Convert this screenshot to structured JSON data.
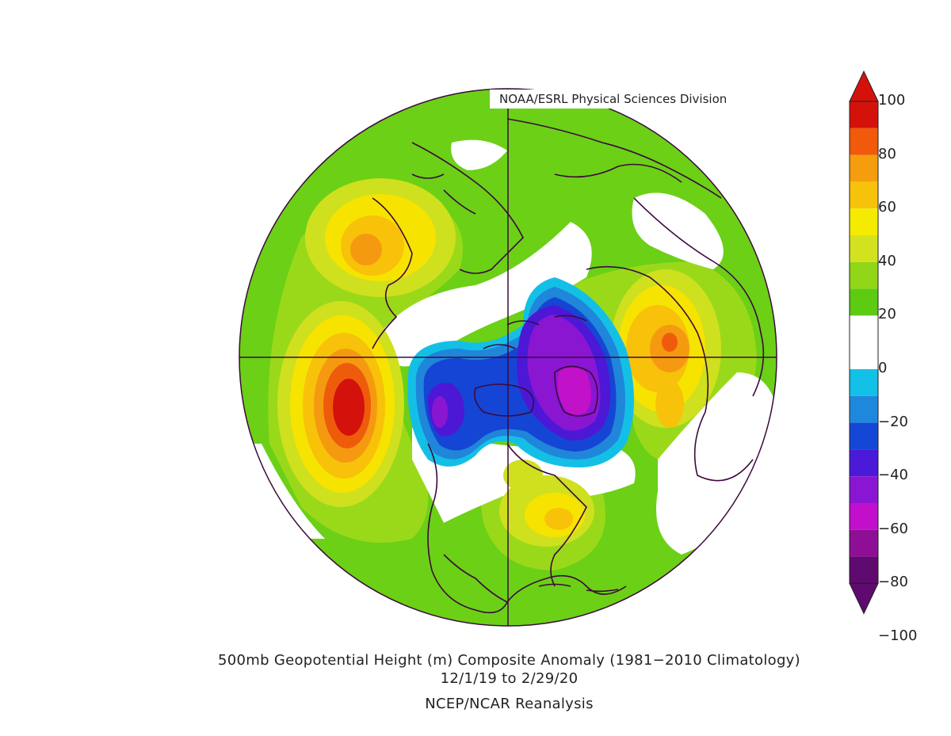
{
  "credit": "NOAA/ESRL Physical Sciences Division",
  "caption": {
    "line1": "500mb Geopotential Height (m) Composite Anomaly (1981−2010 Climatology)",
    "line2": "12/1/19  to 2/29/20",
    "line3": "NCEP/NCAR Reanalysis"
  },
  "colorbar": {
    "ticks": [
      "100",
      "80",
      "60",
      "40",
      "20",
      "0",
      "−20",
      "−40",
      "−60",
      "−80",
      "−100"
    ],
    "colors": [
      "#d5110c",
      "#f05a0a",
      "#f59d0e",
      "#f7c30a",
      "#f5eb00",
      "#d3e21f",
      "#92d619",
      "#5ccb12",
      "#ffffff",
      "#ffffff",
      "#13c0e6",
      "#1e88dc",
      "#1547d6",
      "#4a1ad8",
      "#8a16d4",
      "#c20fcb",
      "#8e0f95",
      "#5f0a6e"
    ],
    "top_arrow_color": "#d5110c",
    "bottom_arrow_color": "#5f0a6e"
  },
  "map_colors": {
    "green": "#6bd016",
    "lightgreen": "#9ad91a",
    "yellowgreen": "#cfe01f",
    "yellow": "#f7e300",
    "gold": "#f8c10a",
    "orange": "#f59a10",
    "darkorange": "#ee5c0b",
    "red": "#d3120c",
    "white": "#ffffff",
    "cyan": "#14bfe6",
    "skyblue": "#1f86da",
    "blue": "#1545d4",
    "violet": "#4c18d6",
    "purple": "#8a16d2",
    "magenta": "#c111c9",
    "coast": "#3c0a3c"
  }
}
